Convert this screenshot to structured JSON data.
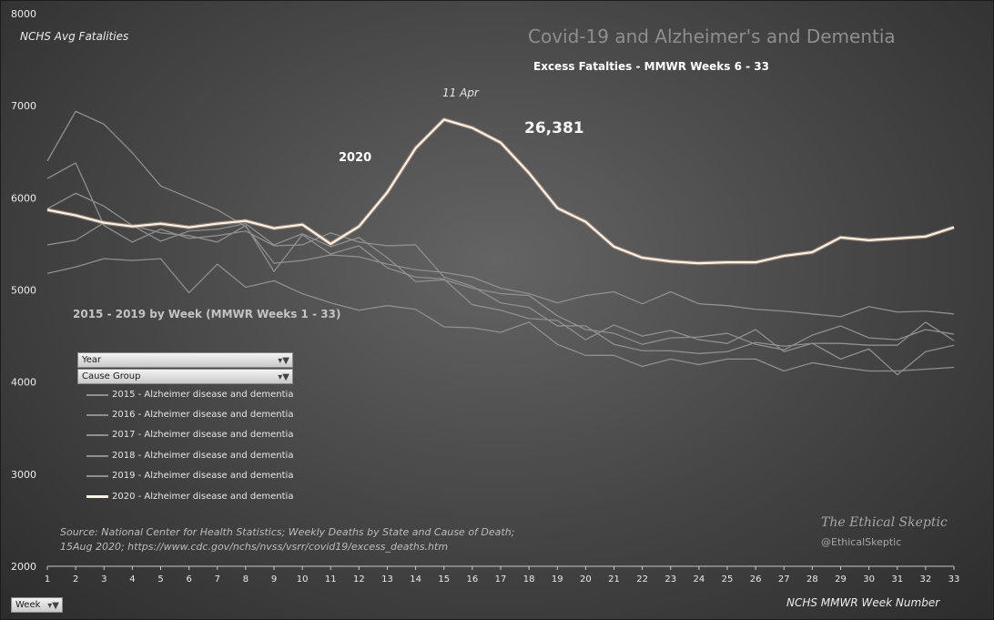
{
  "chart_data": {
    "type": "line",
    "title": "Covid-19 and Alzheimer's and Dementia",
    "subtitle": "Excess Fatalties - MMWR Weeks 6 - 33",
    "ylabel": "NCHS Avg Fatalities",
    "xlabel": "NCHS MMWR Week Number",
    "ylim": [
      2000,
      8000
    ],
    "yticks": [
      2000,
      3000,
      4000,
      5000,
      6000,
      7000,
      8000
    ],
    "xlim": [
      1,
      33
    ],
    "x": [
      1,
      2,
      3,
      4,
      5,
      6,
      7,
      8,
      9,
      10,
      11,
      12,
      13,
      14,
      15,
      16,
      17,
      18,
      19,
      20,
      21,
      22,
      23,
      24,
      25,
      26,
      27,
      28,
      29,
      30,
      31,
      32,
      33
    ],
    "grid": false,
    "legend_position": "left",
    "series": [
      {
        "name": "2015 - Alzheimer disease and dementia",
        "color": "#8f8f8f",
        "values": [
          6400,
          6940,
          6800,
          6490,
          6130,
          6000,
          5870,
          5690,
          5290,
          5320,
          5380,
          5360,
          5280,
          5220,
          5190,
          5140,
          5020,
          4960,
          4860,
          4940,
          4980,
          4850,
          4980,
          4850,
          4830,
          4790,
          4770,
          4740,
          4710,
          4820,
          4760,
          4770,
          4740
        ]
      },
      {
        "name": "2016 - Alzheimer disease and dementia",
        "color": "#8f8f8f",
        "values": [
          5180,
          5250,
          5340,
          5320,
          5340,
          4970,
          5280,
          5030,
          5100,
          4960,
          4860,
          4780,
          4830,
          4790,
          4600,
          4590,
          4540,
          4650,
          4410,
          4290,
          4290,
          4170,
          4250,
          4190,
          4250,
          4250,
          4120,
          4210,
          4160,
          4120,
          4120,
          4140,
          4160
        ]
      },
      {
        "name": "2017 - Alzheimer disease and dementia",
        "color": "#8f8f8f",
        "values": [
          6210,
          6380,
          5700,
          5520,
          5660,
          5560,
          5590,
          5640,
          5480,
          5490,
          5620,
          5520,
          5480,
          5490,
          5140,
          5040,
          4860,
          4810,
          4610,
          4610,
          4410,
          4340,
          4340,
          4310,
          4330,
          4430,
          4390,
          4420,
          4250,
          4360,
          4080,
          4330,
          4400
        ]
      },
      {
        "name": "2018 - Alzheimer disease and dementia",
        "color": "#8f8f8f",
        "values": [
          5490,
          5540,
          5730,
          5700,
          5530,
          5640,
          5660,
          5720,
          5490,
          5610,
          5470,
          5570,
          5350,
          5090,
          5110,
          5020,
          4960,
          4940,
          4720,
          4570,
          4530,
          4410,
          4480,
          4490,
          4530,
          4410,
          4350,
          4510,
          4610,
          4480,
          4460,
          4570,
          4520
        ]
      },
      {
        "name": "2019 - Alzheimer disease and dementia",
        "color": "#8f8f8f",
        "values": [
          5880,
          6050,
          5910,
          5700,
          5620,
          5590,
          5520,
          5700,
          5200,
          5600,
          5390,
          5480,
          5240,
          5140,
          5120,
          4840,
          4780,
          4690,
          4670,
          4460,
          4620,
          4500,
          4560,
          4460,
          4420,
          4570,
          4330,
          4420,
          4420,
          4400,
          4400,
          4650,
          4450
        ]
      },
      {
        "name": "2020 - Alzheimer disease and dementia",
        "color": "#fff3e6",
        "values": [
          5870,
          5810,
          5730,
          5690,
          5720,
          5680,
          5720,
          5750,
          5670,
          5710,
          5500,
          5690,
          6060,
          6540,
          6850,
          6760,
          6600,
          6270,
          5890,
          5740,
          5470,
          5350,
          5310,
          5290,
          5300,
          5300,
          5370,
          5410,
          5570,
          5540,
          5560,
          5580,
          5680
        ]
      }
    ]
  },
  "annotations": {
    "peak_date": "11 Apr",
    "total": "26,381",
    "year_2020": "2020",
    "prior_years": "2015 - 2019 by Week (MMWR Weeks 1 - 33)",
    "source_line1": "Source:  National Center for Health Statistics;  Weekly Deaths by State and Cause of Death;",
    "source_line2": "15Aug 2020; https://www.cdc.gov/nchs/nvss/vsrr/covid19/excess_deaths.htm",
    "signature": "The Ethical Skeptic",
    "handle": "@EthicalSkeptic"
  },
  "filters": {
    "year": "Year",
    "cause_group": "Cause Group",
    "week": "Week"
  }
}
